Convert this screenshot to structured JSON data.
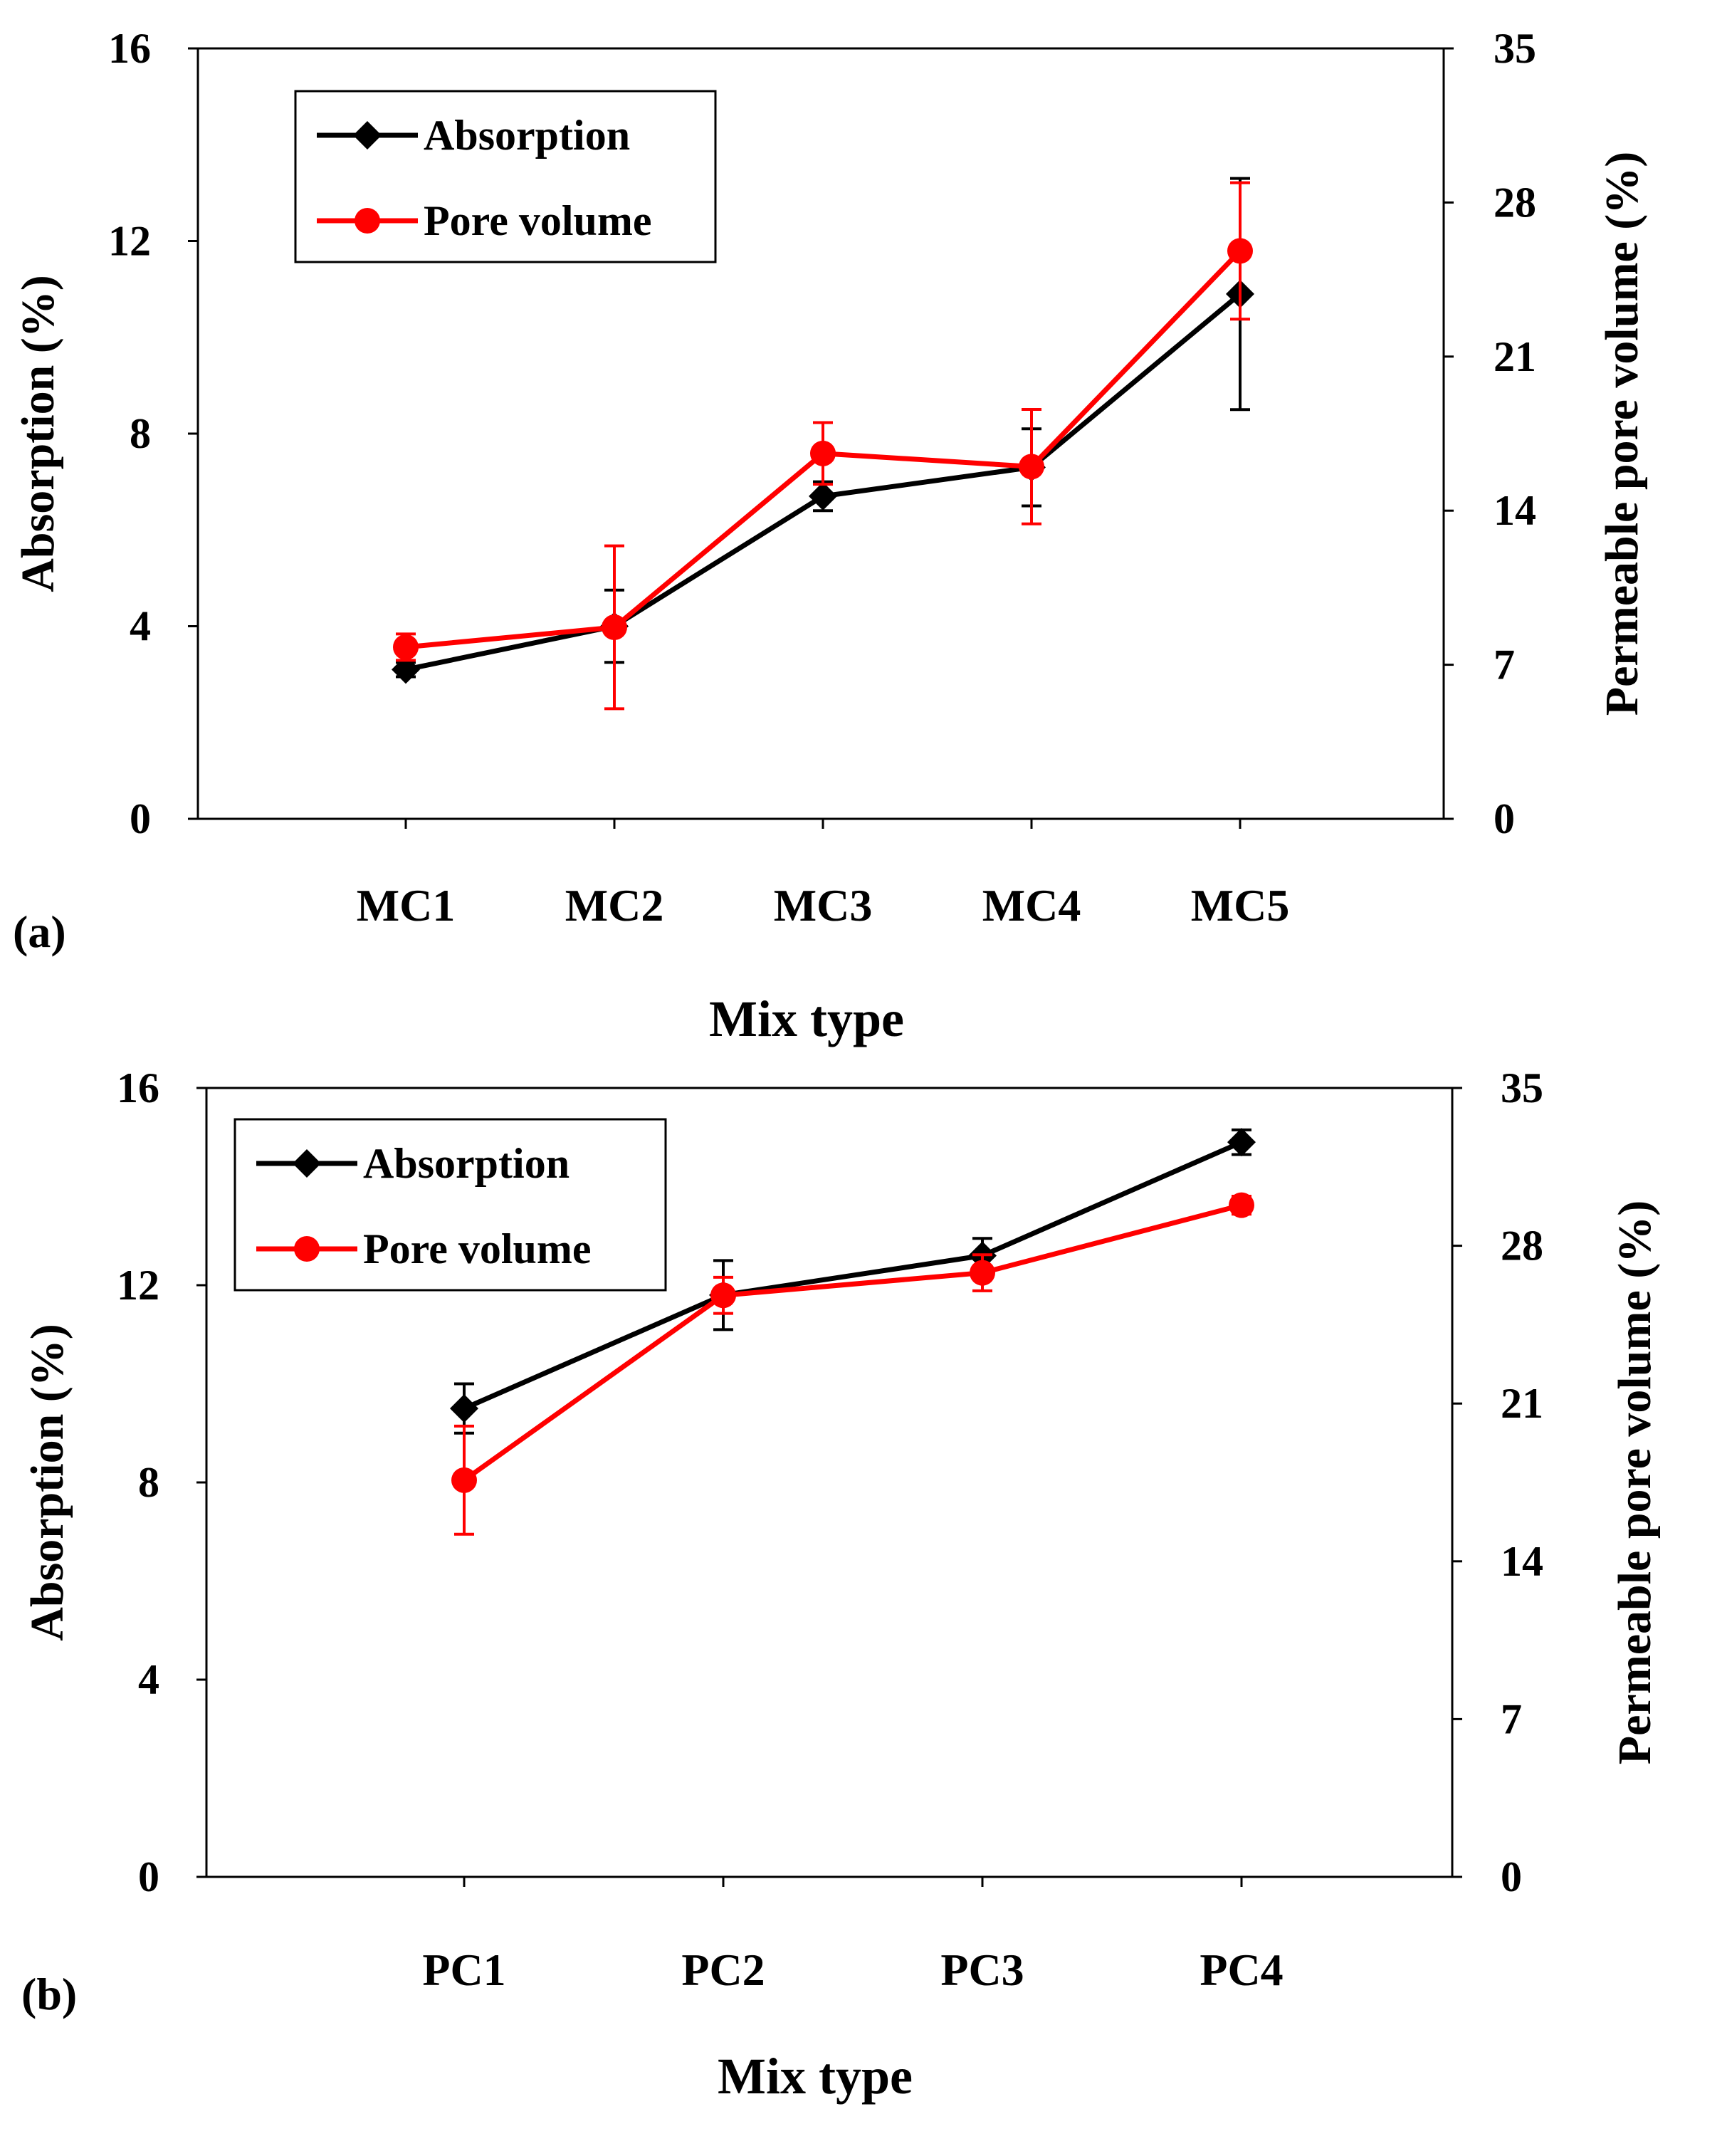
{
  "chart_data": [
    {
      "panel_label": "(a)",
      "type": "line",
      "xlabel": "Mix type",
      "ylabel_left": "Absorption (%)",
      "ylabel_right": "Permeable pore volume (%)",
      "categories": [
        "MC1",
        "MC2",
        "MC3",
        "MC4",
        "MC5"
      ],
      "ylim_left": [
        0,
        16
      ],
      "yticks_left": [
        "0",
        "4",
        "8",
        "12",
        "16"
      ],
      "ylim_right": [
        0,
        35
      ],
      "yticks_right": [
        "0",
        "7",
        "14",
        "21",
        "28",
        "35"
      ],
      "legend_placement": "top-left",
      "grid": false,
      "series": [
        {
          "name": "Absorption",
          "axis": "left",
          "marker": "diamond",
          "color": "#000000",
          "values": [
            3.1,
            4.0,
            6.7,
            7.3,
            10.9
          ],
          "errors": [
            0.15,
            0.75,
            0.3,
            0.8,
            2.4
          ]
        },
        {
          "name": "Pore volume",
          "axis": "right",
          "marker": "circle",
          "color": "#ff0000",
          "values": [
            7.8,
            8.7,
            16.6,
            16.0,
            25.8
          ],
          "errors": [
            0.6,
            3.7,
            1.4,
            2.6,
            3.1
          ]
        }
      ]
    },
    {
      "panel_label": "(b)",
      "type": "line",
      "xlabel": "Mix type",
      "ylabel_left": "Absorption (%)",
      "ylabel_right": "Permeable pore volume (%)",
      "categories": [
        "PC1",
        "PC2",
        "PC3",
        "PC4"
      ],
      "ylim_left": [
        0,
        16
      ],
      "yticks_left": [
        "0",
        "4",
        "8",
        "12",
        "16"
      ],
      "ylim_right": [
        0,
        35
      ],
      "yticks_right": [
        "0",
        "7",
        "14",
        "21",
        "28",
        "35"
      ],
      "legend_placement": "top-left",
      "grid": false,
      "series": [
        {
          "name": "Absorption",
          "axis": "left",
          "marker": "diamond",
          "color": "#000000",
          "values": [
            9.5,
            11.8,
            12.6,
            14.9
          ],
          "errors": [
            0.5,
            0.7,
            0.35,
            0.25
          ]
        },
        {
          "name": "Pore volume",
          "axis": "right",
          "marker": "circle",
          "color": "#ff0000",
          "values": [
            17.6,
            25.8,
            26.8,
            29.8
          ],
          "errors": [
            2.4,
            0.8,
            0.8,
            0.4
          ]
        }
      ]
    }
  ]
}
